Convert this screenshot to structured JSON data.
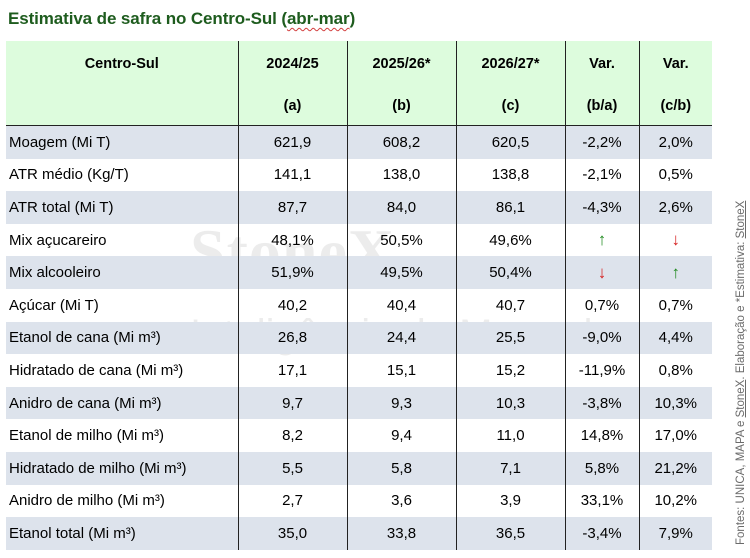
{
  "title": {
    "prefix": "Estimativa de safra no Centro-Sul (",
    "underlined": "abr-mar",
    "suffix": ")"
  },
  "header": {
    "row1": [
      "Centro-Sul",
      "2024/25",
      "2025/26*",
      "2026/27*",
      "Var.",
      "Var."
    ],
    "row2": [
      "",
      "(a)",
      "(b)",
      "(c)",
      "(b/a)",
      "(c/b)"
    ]
  },
  "rows": [
    {
      "label": "Moagem (Mi T)",
      "a": "621,9",
      "b": "608,2",
      "c": "620,5",
      "ba": "-2,2%",
      "cb": "2,0%"
    },
    {
      "label": "ATR médio (Kg/T)",
      "a": "141,1",
      "b": "138,0",
      "c": "138,8",
      "ba": "-2,1%",
      "cb": "0,5%"
    },
    {
      "label": "ATR total (Mi T)",
      "a": "87,7",
      "b": "84,0",
      "c": "86,1",
      "ba": "-4,3%",
      "cb": "2,6%"
    },
    {
      "label": "Mix açucareiro",
      "a": "48,1%",
      "b": "50,5%",
      "c": "49,6%",
      "ba": "↑",
      "cb": "↓"
    },
    {
      "label": "Mix alcooleiro",
      "a": "51,9%",
      "b": "49,5%",
      "c": "50,4%",
      "ba": "↓",
      "cb": "↑"
    },
    {
      "label": "Açúcar (Mi T)",
      "a": "40,2",
      "b": "40,4",
      "c": "40,7",
      "ba": "0,7%",
      "cb": "0,7%"
    },
    {
      "label": "Etanol de cana (Mi m³)",
      "a": "26,8",
      "b": "24,4",
      "c": "25,5",
      "ba": "-9,0%",
      "cb": "4,4%"
    },
    {
      "label": "Hidratado de cana (Mi m³)",
      "a": "17,1",
      "b": "15,1",
      "c": "15,2",
      "ba": "-11,9%",
      "cb": "0,8%"
    },
    {
      "label": "Anidro de cana (Mi m³)",
      "a": "9,7",
      "b": "9,3",
      "c": "10,3",
      "ba": "-3,8%",
      "cb": "10,3%"
    },
    {
      "label": "Etanol de milho (Mi m³)",
      "a": "8,2",
      "b": "9,4",
      "c": "11,0",
      "ba": "14,8%",
      "cb": "17,0%"
    },
    {
      "label": "Hidratado de milho (Mi m³)",
      "a": "5,5",
      "b": "5,8",
      "c": "7,1",
      "ba": "5,8%",
      "cb": "21,2%"
    },
    {
      "label": "Anidro de milho (Mi m³)",
      "a": "2,7",
      "b": "3,6",
      "c": "3,9",
      "ba": "33,1%",
      "cb": "10,2%"
    },
    {
      "label": "Etanol total (Mi m³)",
      "a": "35,0",
      "b": "33,8",
      "c": "36,5",
      "ba": "-3,4%",
      "cb": "7,9%"
    }
  ],
  "arrow_colors": {
    "up": "#1e8a1e",
    "down": "#d52020"
  },
  "colors": {
    "title": "#1e5c1e",
    "header_bg": "#ddfcdd",
    "shaded_row": "#dde3ec"
  },
  "watermark": {
    "brand": "StoneX",
    "subtitle": "Inteligência de Mercado"
  },
  "source": {
    "text_a": "Fontes: UNICA, MAPA e ",
    "brand1": "StoneX",
    "text_b": ". Elaboração e *Estimativa: ",
    "brand2": "StoneX"
  }
}
